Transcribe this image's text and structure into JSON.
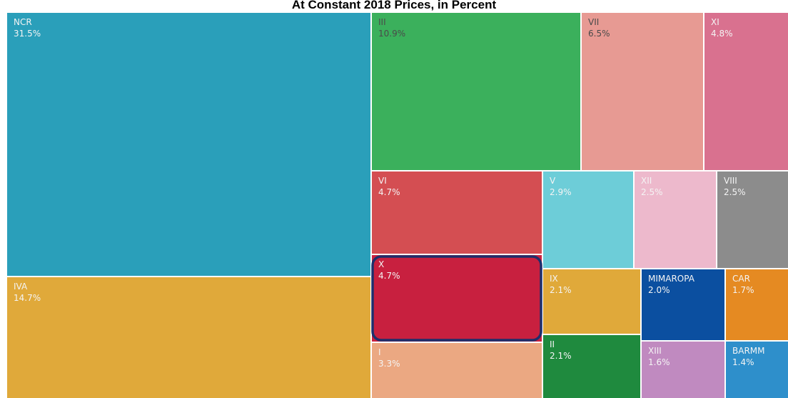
{
  "chart_data": {
    "type": "treemap",
    "title": "At Constant 2018 Prices, in Percent",
    "categories": [
      "NCR",
      "IVA",
      "III",
      "VII",
      "XI",
      "VI",
      "V",
      "XII",
      "VIII",
      "X",
      "I",
      "IX",
      "MIMAROPA",
      "CAR",
      "II",
      "XIII",
      "BARMM"
    ],
    "values": [
      31.5,
      14.7,
      10.9,
      6.5,
      4.8,
      4.7,
      2.9,
      2.5,
      2.5,
      4.7,
      3.3,
      2.1,
      2.0,
      1.7,
      2.1,
      1.6,
      1.4
    ],
    "value_labels": [
      "31.5%",
      "14.7%",
      "10.9%",
      "6.5%",
      "4.8%",
      "4.7%",
      "2.9%",
      "2.5%",
      "2.5%",
      "4.7%",
      "3.3%",
      "2.1%",
      "2.0%",
      "1.7%",
      "2.1%",
      "1.6%",
      "1.4%"
    ],
    "colors": [
      "#2a9fba",
      "#e0a93a",
      "#3bb05c",
      "#e79a93",
      "#d9718f",
      "#d44e52",
      "#6dcdd8",
      "#edb9cc",
      "#8c8c8c",
      "#c8203f",
      "#eba882",
      "#e0a93a",
      "#0b4fa0",
      "#e58a22",
      "#1f8a3e",
      "#c08ac0",
      "#2e8fcb"
    ],
    "highlight": "X"
  }
}
